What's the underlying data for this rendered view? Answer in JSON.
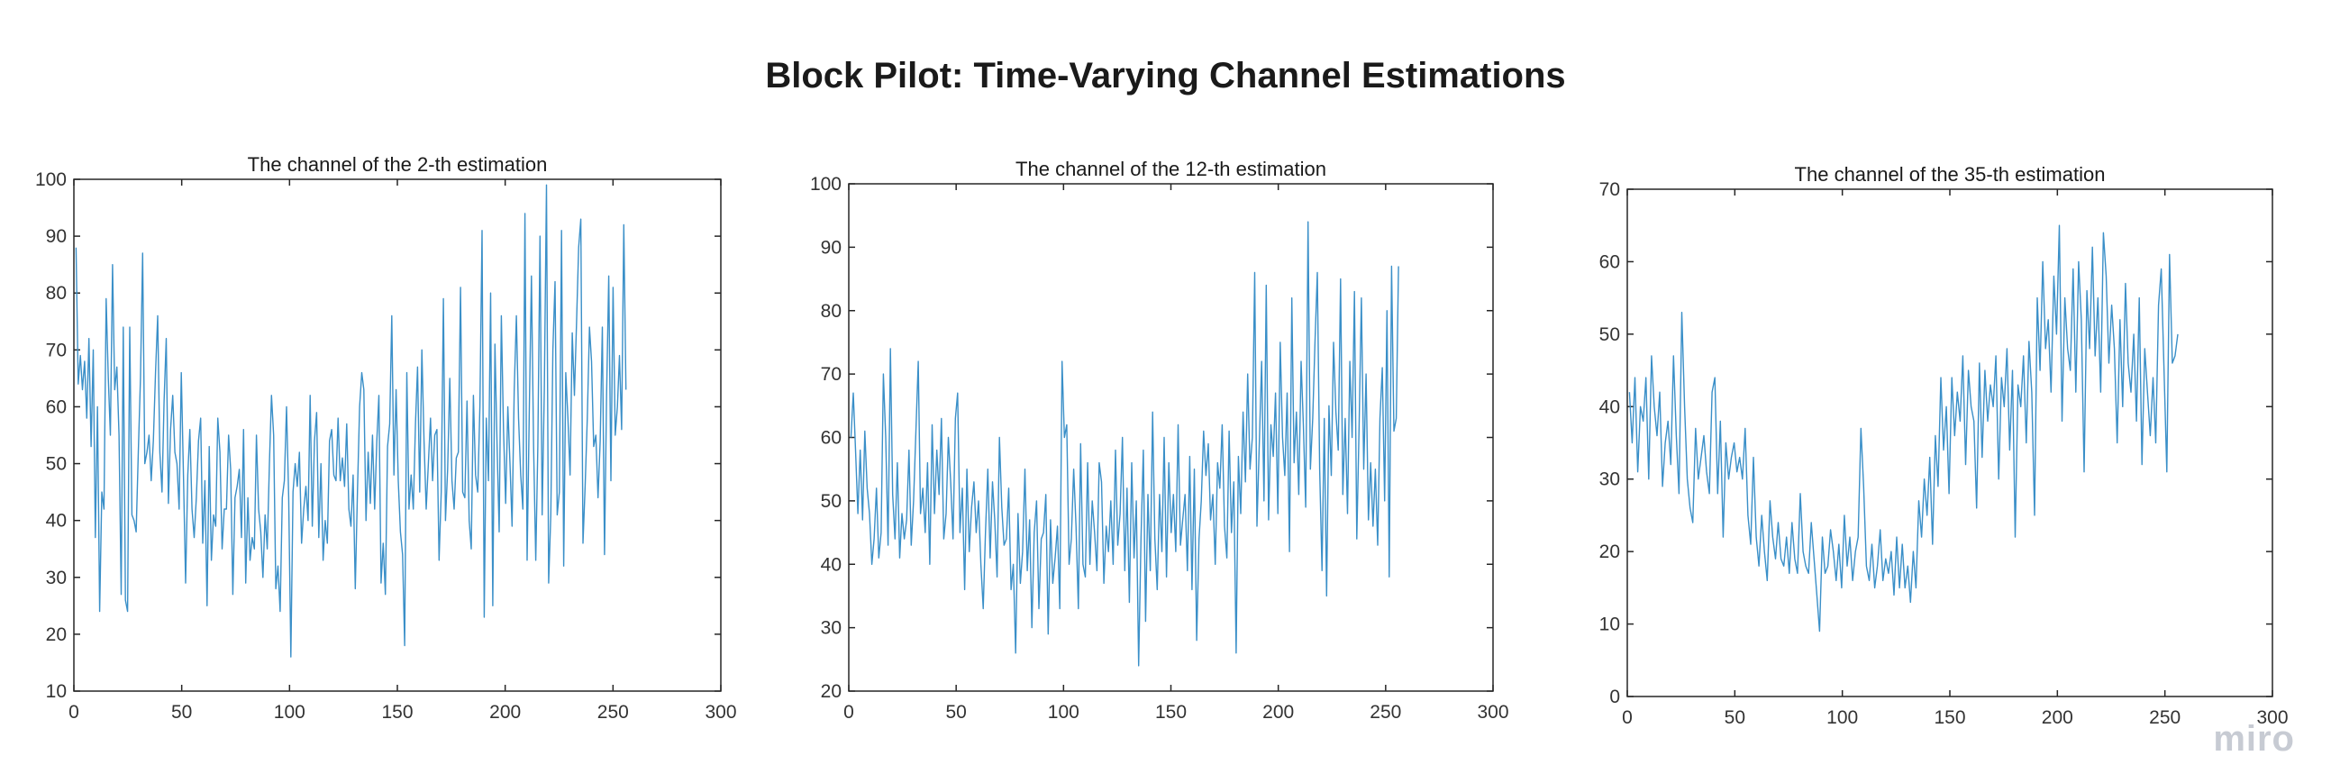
{
  "figure": {
    "title": "Block Pilot: Time-Varying Channel Estimations",
    "watermark": "miro"
  },
  "style": {
    "line_color": "#3a8fc8",
    "axis_color": "#262626"
  },
  "chart_data": [
    {
      "type": "line",
      "title": "The channel of the 2-th estimation",
      "xlabel": "",
      "ylabel": "",
      "xlim": [
        0,
        300
      ],
      "ylim": [
        10,
        100
      ],
      "xticks": [
        0,
        50,
        100,
        150,
        200,
        250,
        300
      ],
      "yticks": [
        10,
        20,
        30,
        40,
        50,
        60,
        70,
        80,
        90,
        100
      ],
      "grid": false,
      "series": [
        {
          "values": [
            88,
            64,
            69,
            63,
            68,
            58,
            72,
            53,
            70,
            37,
            60,
            24,
            45,
            42,
            79,
            65,
            55,
            85,
            63,
            67,
            55,
            27,
            74,
            26,
            24,
            74,
            41,
            40,
            38,
            52,
            65,
            87,
            50,
            52,
            55,
            47,
            54,
            66,
            76,
            52,
            45,
            61,
            72,
            43,
            56,
            62,
            52,
            50,
            42,
            66,
            48,
            29,
            48,
            56,
            42,
            37,
            44,
            54,
            58,
            36,
            47,
            25,
            53,
            33,
            41,
            39,
            58,
            52,
            35,
            42,
            42,
            55,
            49,
            27,
            44,
            46,
            49,
            37,
            56,
            29,
            44,
            33,
            37,
            35,
            55,
            42,
            38,
            30,
            41,
            35,
            50,
            62,
            55,
            28,
            32,
            24,
            44,
            47,
            60,
            44,
            16,
            45,
            50,
            46,
            52,
            36,
            42,
            46,
            40,
            62,
            39,
            54,
            59,
            37,
            50,
            33,
            40,
            36,
            54,
            56,
            48,
            47,
            58,
            47,
            51,
            46,
            57,
            42,
            39,
            48,
            28,
            45,
            60,
            66,
            63,
            40,
            52,
            43,
            55,
            42,
            54,
            62,
            29,
            36,
            27,
            53,
            57,
            76,
            48,
            63,
            47,
            38,
            34,
            18,
            66,
            42,
            48,
            42,
            57,
            67,
            45,
            70,
            54,
            42,
            50,
            58,
            47,
            55,
            56,
            33,
            45,
            79,
            40,
            49,
            65,
            47,
            42,
            51,
            52,
            81,
            45,
            44,
            61,
            40,
            35,
            62,
            48,
            45,
            60,
            91,
            23,
            58,
            47,
            80,
            25,
            71,
            53,
            38,
            76,
            56,
            43,
            60,
            50,
            39,
            63,
            76,
            58,
            48,
            42,
            94,
            33,
            59,
            83,
            53,
            33,
            53,
            90,
            41,
            63,
            99,
            29,
            41,
            70,
            82,
            41,
            45,
            91,
            32,
            66,
            58,
            48,
            73,
            62,
            75,
            88,
            93,
            36,
            46,
            58,
            74,
            68,
            53,
            55,
            44,
            54,
            74,
            34,
            62,
            83,
            47,
            81,
            55,
            60,
            69,
            56,
            92,
            63
          ]
        }
      ]
    },
    {
      "type": "line",
      "title": "The channel of the 12-th estimation",
      "xlabel": "",
      "ylabel": "",
      "xlim": [
        0,
        300
      ],
      "ylim": [
        20,
        100
      ],
      "xticks": [
        0,
        50,
        100,
        150,
        200,
        250,
        300
      ],
      "yticks": [
        20,
        30,
        40,
        50,
        60,
        70,
        80,
        90,
        100
      ],
      "grid": false,
      "series": [
        {
          "values": [
            60,
            67,
            58,
            48,
            58,
            47,
            61,
            52,
            48,
            40,
            44,
            52,
            41,
            45,
            70,
            60,
            43,
            74,
            51,
            44,
            56,
            41,
            48,
            44,
            47,
            58,
            43,
            50,
            61,
            72,
            48,
            52,
            45,
            56,
            40,
            62,
            48,
            58,
            51,
            63,
            44,
            48,
            60,
            53,
            44,
            63,
            67,
            45,
            52,
            36,
            55,
            42,
            49,
            53,
            45,
            50,
            40,
            33,
            45,
            55,
            41,
            53,
            47,
            38,
            60,
            49,
            43,
            44,
            52,
            36,
            40,
            26,
            48,
            37,
            42,
            55,
            39,
            47,
            30,
            45,
            50,
            33,
            44,
            45,
            51,
            29,
            47,
            37,
            41,
            46,
            33,
            72,
            60,
            62,
            40,
            44,
            55,
            46,
            33,
            59,
            40,
            38,
            56,
            40,
            50,
            45,
            39,
            56,
            53,
            37,
            46,
            42,
            50,
            40,
            58,
            43,
            48,
            60,
            39,
            52,
            34,
            56,
            41,
            50,
            24,
            44,
            58,
            31,
            51,
            39,
            64,
            44,
            36,
            51,
            42,
            60,
            38,
            56,
            45,
            51,
            42,
            62,
            43,
            47,
            51,
            39,
            57,
            36,
            55,
            28,
            44,
            50,
            61,
            54,
            59,
            47,
            51,
            40,
            56,
            52,
            62,
            46,
            41,
            61,
            45,
            53,
            26,
            57,
            48,
            64,
            53,
            70,
            55,
            60,
            86,
            46,
            59,
            72,
            50,
            84,
            47,
            62,
            57,
            67,
            48,
            75,
            60,
            54,
            67,
            42,
            82,
            56,
            64,
            51,
            72,
            62,
            49,
            94,
            55,
            63,
            75,
            86,
            55,
            39,
            63,
            35,
            65,
            54,
            75,
            64,
            58,
            85,
            51,
            63,
            48,
            72,
            60,
            83,
            44,
            62,
            82,
            55,
            70,
            47,
            56,
            46,
            55,
            43,
            63,
            71,
            50,
            80,
            38,
            87,
            61,
            63,
            87
          ]
        }
      ]
    },
    {
      "type": "line",
      "title": "The channel of the 35-th estimation",
      "xlabel": "",
      "ylabel": "",
      "xlim": [
        0,
        300
      ],
      "ylim": [
        0,
        70
      ],
      "xticks": [
        0,
        50,
        100,
        150,
        200,
        250,
        300
      ],
      "yticks": [
        0,
        10,
        20,
        30,
        40,
        50,
        60,
        70
      ],
      "grid": false,
      "series": [
        {
          "values": [
            42,
            35,
            44,
            31,
            40,
            38,
            44,
            30,
            47,
            40,
            36,
            42,
            29,
            35,
            38,
            32,
            47,
            36,
            28,
            53,
            40,
            30,
            26,
            24,
            37,
            30,
            33,
            36,
            31,
            28,
            42,
            44,
            28,
            38,
            22,
            35,
            30,
            33,
            35,
            31,
            33,
            30,
            37,
            25,
            21,
            33,
            22,
            18,
            25,
            20,
            16,
            27,
            22,
            19,
            24,
            19,
            18,
            22,
            17,
            24,
            19,
            17,
            28,
            20,
            18,
            17,
            24,
            19,
            14,
            9,
            22,
            17,
            18,
            23,
            20,
            16,
            21,
            15,
            25,
            18,
            22,
            16,
            20,
            22,
            37,
            29,
            18,
            16,
            21,
            15,
            18,
            23,
            16,
            19,
            17,
            20,
            14,
            22,
            15,
            21,
            15,
            18,
            13,
            20,
            15,
            27,
            22,
            30,
            25,
            33,
            21,
            36,
            29,
            44,
            34,
            40,
            28,
            44,
            36,
            42,
            38,
            47,
            32,
            45,
            40,
            38,
            26,
            46,
            33,
            45,
            38,
            43,
            40,
            47,
            30,
            44,
            40,
            48,
            34,
            45,
            22,
            43,
            40,
            47,
            35,
            49,
            42,
            25,
            55,
            45,
            60,
            48,
            52,
            42,
            58,
            50,
            65,
            38,
            55,
            48,
            45,
            59,
            42,
            60,
            52,
            31,
            56,
            48,
            62,
            47,
            55,
            42,
            64,
            58,
            46,
            54,
            48,
            35,
            52,
            40,
            57,
            46,
            42,
            50,
            38,
            55,
            32,
            48,
            42,
            36,
            44,
            35,
            54,
            59,
            45,
            31,
            61,
            46,
            47,
            50
          ]
        }
      ]
    }
  ]
}
